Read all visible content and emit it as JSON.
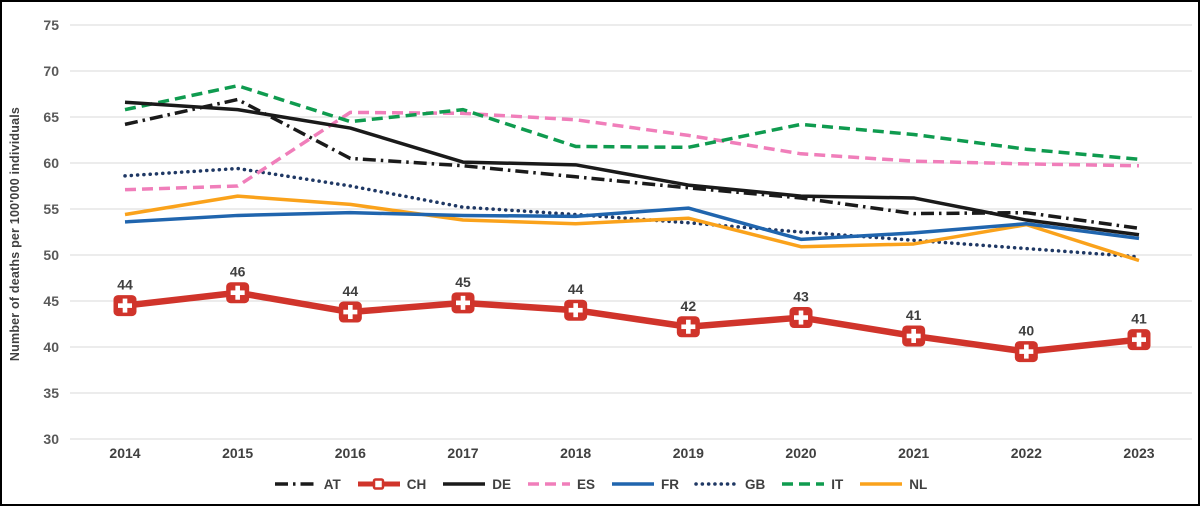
{
  "figure": {
    "background": "#ffffff",
    "border_color": "#000000",
    "gridline_color": "#d9d9d9",
    "tick_label_color": "#595959"
  },
  "chart_data": {
    "type": "line",
    "title": "",
    "xlabel": "",
    "ylabel": "Number of deaths per 100'000 individuals",
    "x": [
      "2014",
      "2015",
      "2016",
      "2017",
      "2018",
      "2019",
      "2020",
      "2021",
      "2022",
      "2023"
    ],
    "ylim": [
      30,
      75
    ],
    "ytick_step": 5,
    "yticks": [
      "30",
      "35",
      "40",
      "45",
      "50",
      "55",
      "60",
      "65",
      "70",
      "75"
    ],
    "grid": true,
    "legend_position": "bottom-center",
    "series": [
      {
        "name": "AT",
        "color": "#1a1a1a",
        "style": "dashdot",
        "width": 3.5,
        "values": [
          64.2,
          66.9,
          60.5,
          59.7,
          58.5,
          57.3,
          56.2,
          54.5,
          54.6,
          52.9
        ]
      },
      {
        "name": "CH",
        "color": "#d0342b",
        "style": "solid",
        "width": 6.5,
        "marker": "swiss-flag-icon",
        "values": [
          44.5,
          45.9,
          43.8,
          44.8,
          44.0,
          42.2,
          43.2,
          41.2,
          39.5,
          40.8
        ],
        "data_labels": [
          "44",
          "46",
          "44",
          "45",
          "44",
          "42",
          "43",
          "41",
          "40",
          "41"
        ]
      },
      {
        "name": "DE",
        "color": "#1a1a1a",
        "style": "solid",
        "width": 3.5,
        "values": [
          66.6,
          65.8,
          63.8,
          60.1,
          59.8,
          57.6,
          56.4,
          56.2,
          53.8,
          52.2
        ]
      },
      {
        "name": "ES",
        "color": "#f07eba",
        "style": "dashed",
        "width": 3.5,
        "values": [
          57.1,
          57.5,
          65.5,
          65.4,
          64.7,
          63.0,
          61.0,
          60.2,
          59.9,
          59.7
        ]
      },
      {
        "name": "FR",
        "color": "#2065ae",
        "style": "solid",
        "width": 3.5,
        "values": [
          53.6,
          54.3,
          54.6,
          54.3,
          54.2,
          55.1,
          51.7,
          52.4,
          53.4,
          51.8
        ]
      },
      {
        "name": "GB",
        "color": "#1f3864",
        "style": "dotted",
        "width": 3.5,
        "values": [
          58.6,
          59.4,
          57.5,
          55.2,
          54.4,
          53.5,
          52.5,
          51.6,
          50.7,
          49.8
        ]
      },
      {
        "name": "IT",
        "color": "#0f9b4f",
        "style": "dashed",
        "width": 3.5,
        "values": [
          65.8,
          68.4,
          64.5,
          65.8,
          61.8,
          61.7,
          64.2,
          63.1,
          61.5,
          60.4
        ]
      },
      {
        "name": "NL",
        "color": "#faa21b",
        "style": "solid",
        "width": 3.5,
        "values": [
          54.4,
          56.4,
          55.5,
          53.8,
          53.4,
          54.0,
          50.9,
          51.2,
          53.3,
          49.4
        ]
      }
    ],
    "z_order": [
      "GB",
      "ES",
      "NL",
      "FR",
      "IT",
      "DE",
      "AT",
      "CH"
    ]
  }
}
